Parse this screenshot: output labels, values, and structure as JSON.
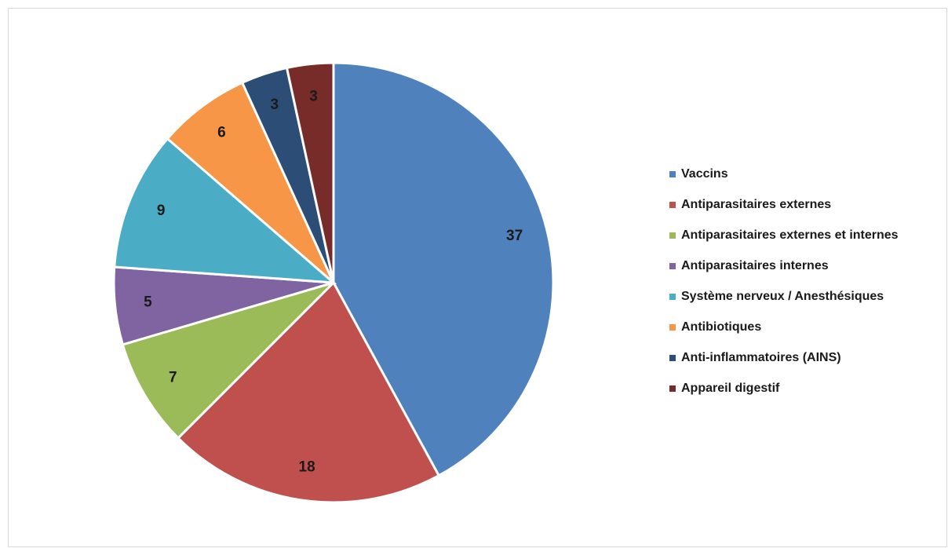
{
  "chart_data": {
    "type": "pie",
    "categories": [
      "Vaccins",
      "Antiparasitaires externes",
      "Antiparasitaires externes et internes",
      "Antiparasitaires internes",
      "Système nerveux / Anesthésiques",
      "Antibiotiques",
      "Anti-inflammatoires (AINS)",
      "Appareil digestif"
    ],
    "values": [
      37,
      18,
      7,
      5,
      9,
      6,
      3,
      3
    ],
    "colors": [
      "#4f81bd",
      "#c0504d",
      "#9bbb59",
      "#8064a2",
      "#4bacc6",
      "#f79646",
      "#2c4d75",
      "#772c2a"
    ],
    "legend": "right"
  }
}
